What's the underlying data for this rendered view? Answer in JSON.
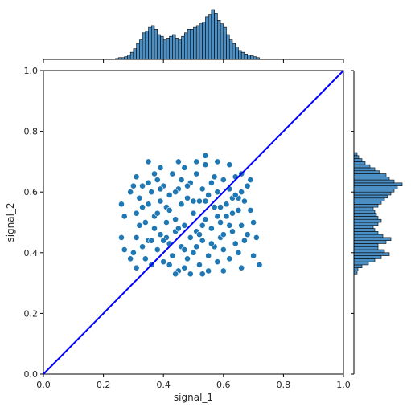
{
  "chart_data": {
    "type": "scatter",
    "title": "",
    "xlabel": "signal_1",
    "ylabel": "signal_2",
    "xlim": [
      0.0,
      1.0
    ],
    "ylim": [
      0.0,
      1.0
    ],
    "xticks": [
      "0.0",
      "0.2",
      "0.4",
      "0.6",
      "0.8",
      "1.0"
    ],
    "yticks": [
      "0.0",
      "0.2",
      "0.4",
      "0.6",
      "0.8",
      "1.0"
    ],
    "grid": false,
    "legend": "none",
    "colors": {
      "points": "#1f77b4",
      "point_edge": "#ffffff",
      "hist_fill": "#4c8fc4",
      "hist_edge": "#000000",
      "line": "#0000ff"
    },
    "reference_line": {
      "x": [
        0.0,
        1.0
      ],
      "y": [
        0.0,
        1.0
      ]
    },
    "scatter": {
      "x_range": [
        0.25,
        0.72
      ],
      "y_range": [
        0.33,
        0.73
      ],
      "points": [
        [
          0.3,
          0.4
        ],
        [
          0.31,
          0.53
        ],
        [
          0.31,
          0.45
        ],
        [
          0.32,
          0.58
        ],
        [
          0.33,
          0.42
        ],
        [
          0.33,
          0.62
        ],
        [
          0.34,
          0.38
        ],
        [
          0.34,
          0.5
        ],
        [
          0.35,
          0.56
        ],
        [
          0.35,
          0.44
        ],
        [
          0.36,
          0.6
        ],
        [
          0.36,
          0.36
        ],
        [
          0.37,
          0.48
        ],
        [
          0.37,
          0.52
        ],
        [
          0.38,
          0.64
        ],
        [
          0.38,
          0.41
        ],
        [
          0.39,
          0.57
        ],
        [
          0.39,
          0.46
        ],
        [
          0.4,
          0.62
        ],
        [
          0.4,
          0.37
        ],
        [
          0.41,
          0.5
        ],
        [
          0.41,
          0.55
        ],
        [
          0.42,
          0.43
        ],
        [
          0.42,
          0.59
        ],
        [
          0.43,
          0.66
        ],
        [
          0.43,
          0.39
        ],
        [
          0.44,
          0.51
        ],
        [
          0.44,
          0.47
        ],
        [
          0.45,
          0.61
        ],
        [
          0.45,
          0.34
        ],
        [
          0.46,
          0.56
        ],
        [
          0.46,
          0.42
        ],
        [
          0.47,
          0.68
        ],
        [
          0.47,
          0.49
        ],
        [
          0.48,
          0.38
        ],
        [
          0.48,
          0.58
        ],
        [
          0.49,
          0.45
        ],
        [
          0.49,
          0.63
        ],
        [
          0.5,
          0.53
        ],
        [
          0.5,
          0.4
        ],
        [
          0.51,
          0.66
        ],
        [
          0.51,
          0.47
        ],
        [
          0.52,
          0.36
        ],
        [
          0.52,
          0.57
        ],
        [
          0.53,
          0.61
        ],
        [
          0.53,
          0.44
        ],
        [
          0.54,
          0.51
        ],
        [
          0.54,
          0.69
        ],
        [
          0.55,
          0.39
        ],
        [
          0.55,
          0.59
        ],
        [
          0.56,
          0.48
        ],
        [
          0.56,
          0.63
        ],
        [
          0.57,
          0.42
        ],
        [
          0.57,
          0.55
        ],
        [
          0.58,
          0.37
        ],
        [
          0.58,
          0.6
        ],
        [
          0.59,
          0.5
        ],
        [
          0.59,
          0.45
        ],
        [
          0.6,
          0.64
        ],
        [
          0.6,
          0.41
        ],
        [
          0.61,
          0.56
        ],
        [
          0.61,
          0.52
        ],
        [
          0.62,
          0.38
        ],
        [
          0.62,
          0.61
        ],
        [
          0.63,
          0.47
        ],
        [
          0.63,
          0.58
        ],
        [
          0.64,
          0.43
        ],
        [
          0.64,
          0.65
        ],
        [
          0.65,
          0.54
        ],
        [
          0.65,
          0.4
        ],
        [
          0.66,
          0.6
        ],
        [
          0.66,
          0.49
        ],
        [
          0.67,
          0.44
        ],
        [
          0.67,
          0.57
        ],
        [
          0.68,
          0.62
        ],
        [
          0.68,
          0.46
        ],
        [
          0.32,
          0.49
        ],
        [
          0.35,
          0.63
        ],
        [
          0.38,
          0.53
        ],
        [
          0.41,
          0.45
        ],
        [
          0.44,
          0.6
        ],
        [
          0.47,
          0.41
        ],
        [
          0.5,
          0.57
        ],
        [
          0.53,
          0.49
        ],
        [
          0.56,
          0.43
        ],
        [
          0.59,
          0.55
        ],
        [
          0.62,
          0.49
        ],
        [
          0.65,
          0.58
        ],
        [
          0.36,
          0.44
        ],
        [
          0.39,
          0.61
        ],
        [
          0.42,
          0.54
        ],
        [
          0.45,
          0.48
        ],
        [
          0.48,
          0.62
        ],
        [
          0.51,
          0.42
        ],
        [
          0.54,
          0.57
        ],
        [
          0.57,
          0.65
        ],
        [
          0.6,
          0.46
        ],
        [
          0.63,
          0.53
        ],
        [
          0.33,
          0.55
        ],
        [
          0.4,
          0.44
        ],
        [
          0.46,
          0.64
        ],
        [
          0.52,
          0.46
        ],
        [
          0.58,
          0.52
        ],
        [
          0.64,
          0.59
        ],
        [
          0.26,
          0.56
        ],
        [
          0.26,
          0.45
        ],
        [
          0.29,
          0.6
        ],
        [
          0.27,
          0.41
        ],
        [
          0.29,
          0.38
        ],
        [
          0.31,
          0.65
        ],
        [
          0.35,
          0.7
        ],
        [
          0.39,
          0.68
        ],
        [
          0.44,
          0.33
        ],
        [
          0.49,
          0.33
        ],
        [
          0.54,
          0.72
        ],
        [
          0.58,
          0.7
        ],
        [
          0.62,
          0.69
        ],
        [
          0.66,
          0.66
        ],
        [
          0.69,
          0.54
        ],
        [
          0.7,
          0.39
        ],
        [
          0.71,
          0.45
        ],
        [
          0.72,
          0.36
        ],
        [
          0.66,
          0.35
        ],
        [
          0.6,
          0.34
        ],
        [
          0.53,
          0.33
        ],
        [
          0.47,
          0.35
        ],
        [
          0.42,
          0.36
        ],
        [
          0.31,
          0.35
        ],
        [
          0.69,
          0.64
        ],
        [
          0.27,
          0.52
        ],
        [
          0.7,
          0.5
        ],
        [
          0.3,
          0.62
        ],
        [
          0.55,
          0.34
        ],
        [
          0.37,
          0.66
        ],
        [
          0.51,
          0.7
        ],
        [
          0.45,
          0.7
        ]
      ]
    },
    "marginal_x": {
      "type": "histogram",
      "bin_edges": [
        0.24,
        0.25,
        0.26,
        0.27,
        0.28,
        0.29,
        0.3,
        0.31,
        0.32,
        0.33,
        0.34,
        0.35,
        0.36,
        0.37,
        0.38,
        0.39,
        0.4,
        0.41,
        0.42,
        0.43,
        0.44,
        0.45,
        0.46,
        0.47,
        0.48,
        0.49,
        0.5,
        0.51,
        0.52,
        0.53,
        0.54,
        0.55,
        0.56,
        0.57,
        0.58,
        0.59,
        0.6,
        0.61,
        0.62,
        0.63,
        0.64,
        0.65,
        0.66,
        0.67,
        0.68,
        0.69,
        0.7,
        0.71,
        0.72
      ],
      "counts": [
        1,
        2,
        2,
        3,
        5,
        8,
        12,
        18,
        22,
        30,
        32,
        36,
        38,
        34,
        28,
        26,
        22,
        24,
        26,
        28,
        24,
        22,
        26,
        30,
        34,
        34,
        36,
        38,
        40,
        42,
        48,
        50,
        56,
        52,
        44,
        40,
        36,
        28,
        22,
        18,
        14,
        10,
        8,
        6,
        5,
        4,
        3,
        2
      ]
    },
    "marginal_y": {
      "type": "histogram",
      "bin_edges": [
        0.33,
        0.34,
        0.35,
        0.36,
        0.37,
        0.38,
        0.39,
        0.4,
        0.41,
        0.42,
        0.43,
        0.44,
        0.45,
        0.46,
        0.47,
        0.48,
        0.49,
        0.5,
        0.51,
        0.52,
        0.53,
        0.54,
        0.55,
        0.56,
        0.57,
        0.58,
        0.59,
        0.6,
        0.61,
        0.62,
        0.63,
        0.64,
        0.65,
        0.66,
        0.67,
        0.68,
        0.69,
        0.7,
        0.71,
        0.72,
        0.73
      ],
      "counts": [
        4,
        5,
        10,
        18,
        26,
        34,
        44,
        38,
        30,
        30,
        40,
        46,
        36,
        30,
        26,
        24,
        30,
        34,
        30,
        28,
        26,
        24,
        30,
        34,
        38,
        42,
        46,
        50,
        54,
        60,
        50,
        44,
        40,
        32,
        26,
        20,
        14,
        10,
        6,
        4
      ]
    }
  }
}
